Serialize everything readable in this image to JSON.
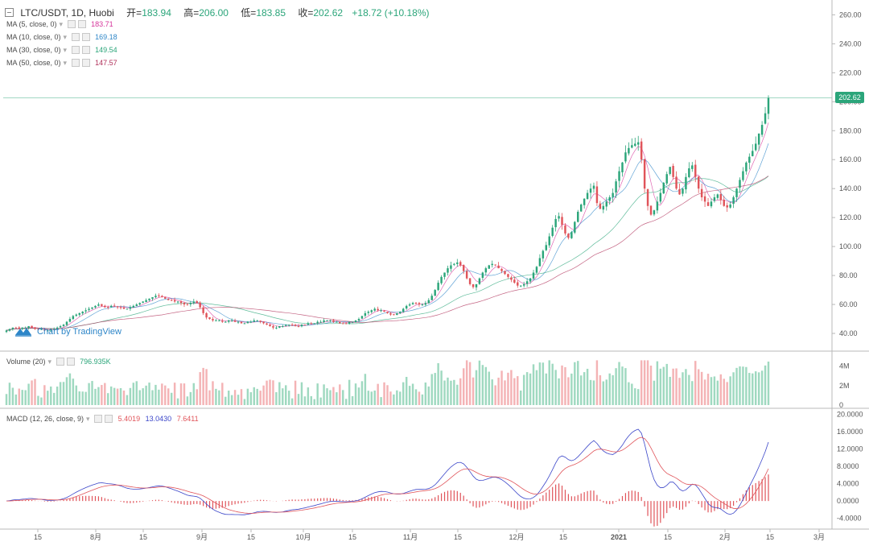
{
  "header": {
    "symbol": "LTC/USDT, 1D, Huobi",
    "open_label": "开=",
    "open": "183.94",
    "high_label": "高=",
    "high": "206.00",
    "low_label": "低=",
    "low": "183.85",
    "close_label": "收=",
    "close": "202.62",
    "change": "+18.72 (+10.18%)"
  },
  "indicators": [
    {
      "label": "MA (5, close, 0)",
      "value": "183.71",
      "color": "#d6339a"
    },
    {
      "label": "MA (10, close, 0)",
      "value": "169.18",
      "color": "#2e86c8"
    },
    {
      "label": "MA (30, close, 0)",
      "value": "149.54",
      "color": "#2ba57a"
    },
    {
      "label": "MA (50, close, 0)",
      "value": "147.57",
      "color": "#b0305a"
    }
  ],
  "volume_legend": {
    "label": "Volume (20)",
    "value": "796.935K"
  },
  "macd_legend": {
    "label": "MACD (12, 26, close, 9)",
    "hist": "5.4019",
    "macd": "13.0430",
    "signal": "7.6411"
  },
  "watermark": "Chart by TradingView",
  "last_price_tag": "202.62",
  "colors": {
    "up": "#2ba57a",
    "down": "#e0545a",
    "vol_up": "#9fd9c0",
    "vol_down": "#f4b3b5",
    "macd_line": "#3b46c9",
    "signal_line": "#e0545a",
    "hist": "#e0545a"
  },
  "chart_data": {
    "type": "candlestick",
    "price_axis": {
      "ticks": [
        "260.00",
        "240.00",
        "220.00",
        "200.00",
        "180.00",
        "160.00",
        "140.00",
        "120.00",
        "100.00",
        "80.00",
        "60.00",
        "40.00"
      ],
      "ylim": [
        30,
        268
      ]
    },
    "volume_axis": {
      "ticks": [
        "4M",
        "2M",
        "0"
      ]
    },
    "macd_axis": {
      "ticks": [
        "20.0000",
        "16.0000",
        "12.0000",
        "8.0000",
        "4.0000",
        "0.0000",
        "-4.0000"
      ]
    },
    "x_ticks": [
      "15",
      "8月",
      "15",
      "9月",
      "15",
      "10月",
      "15",
      "11月",
      "15",
      "12月",
      "15",
      "2021",
      "15",
      "2月",
      "15",
      "3月"
    ],
    "close": [
      42,
      43,
      44,
      44,
      43,
      44,
      44,
      45,
      44,
      43,
      43,
      43,
      42,
      42,
      43,
      43,
      44,
      45,
      46,
      48,
      50,
      52,
      53,
      54,
      55,
      56,
      57,
      58,
      59,
      60,
      59,
      58,
      58,
      59,
      59,
      58,
      58,
      57,
      57,
      58,
      59,
      60,
      61,
      62,
      63,
      64,
      65,
      66,
      66,
      65,
      64,
      63,
      63,
      62,
      62,
      61,
      60,
      60,
      61,
      62,
      61,
      58,
      54,
      51,
      50,
      49,
      49,
      49,
      48,
      48,
      49,
      49,
      48,
      48,
      47,
      47,
      48,
      48,
      49,
      49,
      48,
      47,
      46,
      45,
      44,
      44,
      45,
      45,
      46,
      46,
      46,
      45,
      45,
      46,
      46,
      47,
      47,
      47,
      48,
      48,
      49,
      49,
      49,
      48,
      48,
      47,
      47,
      47,
      48,
      48,
      49,
      50,
      52,
      54,
      55,
      56,
      57,
      56,
      56,
      55,
      54,
      53,
      53,
      54,
      55,
      57,
      59,
      60,
      61,
      61,
      60,
      60,
      61,
      63,
      66,
      70,
      75,
      79,
      82,
      85,
      87,
      88,
      89,
      87,
      83,
      78,
      74,
      72,
      74,
      78,
      82,
      85,
      87,
      88,
      87,
      85,
      83,
      81,
      79,
      77,
      75,
      73,
      73,
      74,
      76,
      78,
      82,
      86,
      92,
      97,
      101,
      107,
      113,
      119,
      121,
      115,
      109,
      106,
      110,
      117,
      124,
      129,
      133,
      137,
      140,
      142,
      130,
      126,
      128,
      131,
      134,
      137,
      145,
      152,
      158,
      165,
      168,
      170,
      171,
      172,
      160,
      140,
      128,
      122,
      125,
      131,
      137,
      144,
      150,
      155,
      148,
      140,
      136,
      140,
      148,
      154,
      156,
      148,
      140,
      134,
      131,
      128,
      131,
      134,
      136,
      132,
      128,
      127,
      129,
      134,
      140,
      146,
      152,
      158,
      162,
      166,
      171,
      178,
      184,
      192,
      202.62
    ]
  }
}
